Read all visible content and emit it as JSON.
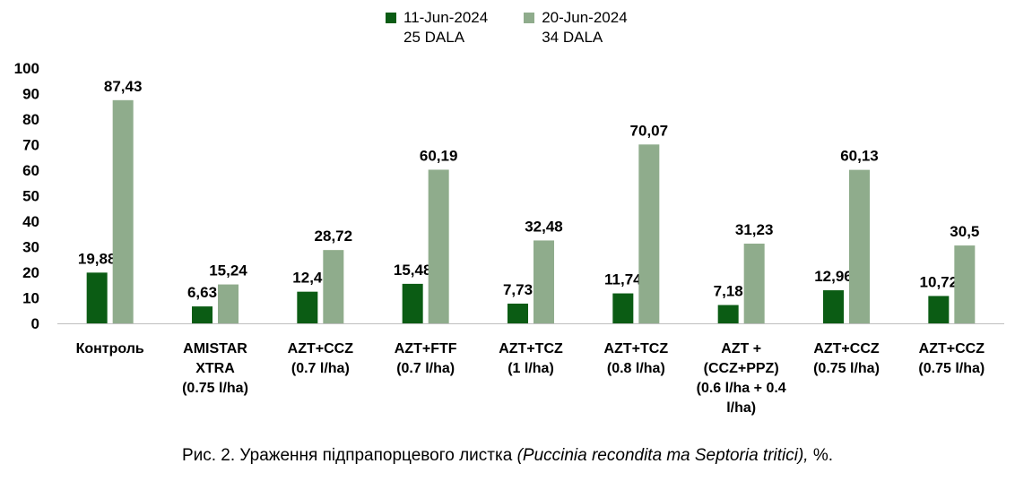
{
  "chart_data": {
    "type": "bar",
    "categories": [
      [
        "Контроль"
      ],
      [
        "AMISTAR",
        "XTRA",
        "(0.75 l/ha)"
      ],
      [
        "AZT+CCZ",
        "(0.7 l/ha)"
      ],
      [
        "AZT+FTF",
        "(0.7 l/ha)"
      ],
      [
        "AZT+TCZ",
        "(1 l/ha)"
      ],
      [
        "AZT+TCZ",
        "(0.8 l/ha)"
      ],
      [
        "AZT +",
        "(CCZ+PPZ)",
        "(0.6 l/ha + 0.4",
        "l/ha)"
      ],
      [
        "AZT+CCZ",
        "(0.75 l/ha)"
      ],
      [
        "AZT+CCZ",
        "(0.75 l/ha)"
      ]
    ],
    "series": [
      {
        "name": "11-Jun-2024",
        "name_line2": "25 DALA",
        "color": "#0b5c14",
        "values": [
          19.88,
          6.63,
          12.4,
          15.48,
          7.73,
          11.74,
          7.18,
          12.96,
          10.72
        ],
        "labels": [
          "19,88",
          "6,63",
          "12,4",
          "15,48",
          "7,73",
          "11,74",
          "7,18",
          "12,96",
          "10,72"
        ]
      },
      {
        "name": "20-Jun-2024",
        "name_line2": "34 DALA",
        "color": "#8fac8c",
        "values": [
          87.43,
          15.24,
          28.72,
          60.19,
          32.48,
          70.07,
          31.23,
          60.13,
          30.5
        ],
        "labels": [
          "87,43",
          "15,24",
          "28,72",
          "60,19",
          "32,48",
          "70,07",
          "31,23",
          "60,13",
          "30,5"
        ]
      }
    ],
    "yticks": [
      "0",
      "10",
      "20",
      "30",
      "40",
      "50",
      "60",
      "70",
      "80",
      "90",
      "100"
    ],
    "ylim": [
      0,
      100
    ],
    "grid": false,
    "legend": "top-center",
    "xlabel": "",
    "ylabel": ""
  },
  "caption": {
    "prefix": "Рис. 2. Ураження підпрапорцевого листка ",
    "italic": "(Puccinia recondita та Septoria tritici),",
    "suffix": " %."
  }
}
